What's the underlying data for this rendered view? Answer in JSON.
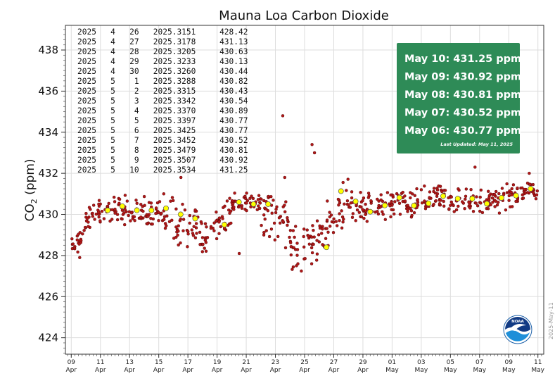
{
  "chart_data": {
    "type": "scatter",
    "title": "Mauna Loa Carbon Dioxide",
    "ylabel_main": "CO",
    "ylabel_sub": "2",
    "ylabel_unit": " (ppm)",
    "ylim": [
      423.2,
      439.2
    ],
    "yticks": [
      424,
      426,
      428,
      430,
      432,
      434,
      436,
      438
    ],
    "xlim_days": [
      -0.4,
      32.4
    ],
    "xticks": [
      {
        "day": "09",
        "month": "Apr"
      },
      {
        "day": "11",
        "month": "Apr"
      },
      {
        "day": "13",
        "month": "Apr"
      },
      {
        "day": "15",
        "month": "Apr"
      },
      {
        "day": "17",
        "month": "Apr"
      },
      {
        "day": "19",
        "month": "Apr"
      },
      {
        "day": "21",
        "month": "Apr"
      },
      {
        "day": "23",
        "month": "Apr"
      },
      {
        "day": "25",
        "month": "Apr"
      },
      {
        "day": "27",
        "month": "Apr"
      },
      {
        "day": "29",
        "month": "Apr"
      },
      {
        "day": "01",
        "month": "May"
      },
      {
        "day": "03",
        "month": "May"
      },
      {
        "day": "05",
        "month": "May"
      },
      {
        "day": "07",
        "month": "May"
      },
      {
        "day": "09",
        "month": "May"
      },
      {
        "day": "11",
        "month": "May"
      }
    ],
    "daily_means": [
      {
        "date": "2025-04-11",
        "value": 430.2
      },
      {
        "date": "2025-04-12",
        "value": 430.4
      },
      {
        "date": "2025-04-13",
        "value": 430.2
      },
      {
        "date": "2025-04-14",
        "value": 430.2
      },
      {
        "date": "2025-04-15",
        "value": 430.3
      },
      {
        "date": "2025-04-16",
        "value": 430.0
      },
      {
        "date": "2025-04-17",
        "value": 429.8
      },
      {
        "date": "2025-04-19",
        "value": 429.5
      },
      {
        "date": "2025-04-20",
        "value": 430.6
      },
      {
        "date": "2025-04-21",
        "value": 430.5
      },
      {
        "date": "2025-04-22",
        "value": 430.5
      },
      {
        "date": "2025-04-26",
        "value": 428.4
      },
      {
        "date": "2025-04-27",
        "value": 431.13
      },
      {
        "date": "2025-04-28",
        "value": 430.63
      },
      {
        "date": "2025-04-29",
        "value": 430.13
      },
      {
        "date": "2025-04-30",
        "value": 430.44
      },
      {
        "date": "2025-05-01",
        "value": 430.82
      },
      {
        "date": "2025-05-02",
        "value": 430.43
      },
      {
        "date": "2025-05-03",
        "value": 430.54
      },
      {
        "date": "2025-05-04",
        "value": 430.89
      },
      {
        "date": "2025-05-05",
        "value": 430.77
      },
      {
        "date": "2025-05-06",
        "value": 430.77
      },
      {
        "date": "2025-05-07",
        "value": 430.52
      },
      {
        "date": "2025-05-08",
        "value": 430.81
      },
      {
        "date": "2025-05-09",
        "value": 430.92
      },
      {
        "date": "2025-05-10",
        "value": 431.25
      }
    ],
    "hourly_segments": [
      {
        "from": "2025-04-09",
        "to": "2025-04-10",
        "start": 428.1,
        "end": 429.6,
        "spread": 0.5
      },
      {
        "from": "2025-04-10",
        "to": "2025-04-12",
        "start": 429.9,
        "end": 430.3,
        "spread": 0.5
      },
      {
        "from": "2025-04-12",
        "to": "2025-04-14",
        "start": 430.3,
        "end": 430.2,
        "spread": 0.6
      },
      {
        "from": "2025-04-14",
        "to": "2025-04-16",
        "start": 430.2,
        "end": 430.0,
        "spread": 0.8
      },
      {
        "from": "2025-04-16",
        "to": "2025-04-18",
        "start": 429.5,
        "end": 429.4,
        "spread": 0.9
      },
      {
        "from": "2025-04-18",
        "to": "2025-04-20",
        "start": 428.7,
        "end": 430.3,
        "spread": 0.7
      },
      {
        "from": "2025-04-20",
        "to": "2025-04-22",
        "start": 430.6,
        "end": 430.5,
        "spread": 0.4
      },
      {
        "from": "2025-04-22",
        "to": "2025-04-24",
        "start": 430.2,
        "end": 429.6,
        "spread": 1.0
      },
      {
        "from": "2025-04-24",
        "to": "2025-04-26",
        "start": 428.4,
        "end": 428.6,
        "spread": 1.1
      },
      {
        "from": "2025-04-26",
        "to": "2025-04-28",
        "start": 429.0,
        "end": 430.9,
        "spread": 0.9
      },
      {
        "from": "2025-04-28",
        "to": "2025-04-30",
        "start": 430.6,
        "end": 430.3,
        "spread": 0.7
      },
      {
        "from": "2025-04-30",
        "to": "2025-05-02",
        "start": 430.4,
        "end": 430.6,
        "spread": 0.6
      },
      {
        "from": "2025-05-02",
        "to": "2025-05-04",
        "start": 430.4,
        "end": 430.8,
        "spread": 0.6
      },
      {
        "from": "2025-05-04",
        "to": "2025-05-06",
        "start": 430.8,
        "end": 430.8,
        "spread": 0.5
      },
      {
        "from": "2025-05-06",
        "to": "2025-05-08",
        "start": 430.6,
        "end": 430.7,
        "spread": 0.5
      },
      {
        "from": "2025-05-08",
        "to": "2025-05-10",
        "start": 430.7,
        "end": 431.0,
        "spread": 0.5
      },
      {
        "from": "2025-05-10",
        "to": "2025-05-11",
        "start": 431.1,
        "end": 431.2,
        "spread": 0.4
      }
    ],
    "hourly_outliers": [
      {
        "date": "2025-04-23",
        "value": 434.8
      },
      {
        "date": "2025-04-25",
        "value": 433.4
      },
      {
        "date": "2025-04-25",
        "value": 433.0
      },
      {
        "date": "2025-05-06",
        "value": 432.3
      },
      {
        "date": "2025-04-16",
        "value": 431.8
      },
      {
        "date": "2025-05-10",
        "value": 432.0
      },
      {
        "date": "2025-04-23",
        "value": 431.8
      },
      {
        "date": "2025-04-25",
        "value": 427.6
      },
      {
        "date": "2025-04-24",
        "value": 427.6
      },
      {
        "date": "2025-04-20",
        "value": 428.1
      },
      {
        "date": "2025-04-09",
        "value": 427.9
      }
    ],
    "colors": {
      "hourly_point": "#b01818",
      "hourly_edge": "#4a0000",
      "daily_point": "#ffff00",
      "daily_edge": "#555555",
      "box_bg": "#2e8b57",
      "grid": "#dddddd"
    },
    "grid": true,
    "table_rows": [
      "2025   4   26   2025.3151     428.42",
      "2025   4   27   2025.3178     431.13",
      "2025   4   28   2025.3205     430.63",
      "2025   4   29   2025.3233     430.13",
      "2025   4   30   2025.3260     430.44",
      "2025   5    1   2025.3288     430.82",
      "2025   5    2   2025.3315     430.43",
      "2025   5    3   2025.3342     430.54",
      "2025   5    4   2025.3370     430.89",
      "2025   5    5   2025.3397     430.77",
      "2025   5    6   2025.3425     430.77",
      "2025   5    7   2025.3452     430.52",
      "2025   5    8   2025.3479     430.81",
      "2025   5    9   2025.3507     430.92",
      "2025   5   10   2025.3534     431.25"
    ],
    "summary_box": {
      "lines": [
        "May 10:  431.25 ppm",
        "May 09:  430.92 ppm",
        "May 08:  430.81 ppm",
        "May 07:  430.52 ppm",
        "May 06:  430.77 ppm"
      ],
      "updated": "Last Updated: May 11, 2025",
      "placement": "top-right"
    },
    "side_stamp": "2025-May-11",
    "logo_text": "NOAA"
  }
}
